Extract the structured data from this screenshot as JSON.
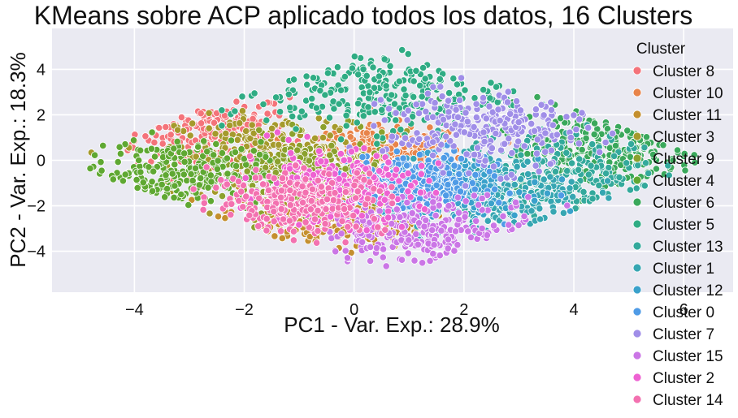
{
  "chart_data": {
    "type": "scatter",
    "title": "KMeans sobre ACP aplicado todos los datos, 16 Clusters",
    "xlabel": "PC1 - Var. Exp.: 28.9%",
    "ylabel": "PC2 - Var. Exp.: 18.3%",
    "xlim": [
      -5.5,
      6.9
    ],
    "ylim": [
      -5.8,
      5.8
    ],
    "xticks": [
      -4,
      -2,
      0,
      2,
      4,
      6
    ],
    "yticks": [
      -4,
      -2,
      0,
      2,
      4
    ],
    "xtick_labels": [
      "−4",
      "−2",
      "0",
      "2",
      "4",
      "6"
    ],
    "ytick_labels": [
      "−4",
      "−2",
      "0",
      "2",
      "4"
    ],
    "grid": true,
    "legend": {
      "title": "Cluster",
      "placement": "right",
      "entries": [
        "Cluster 8",
        "Cluster 10",
        "Cluster 11",
        "Cluster 3",
        "Cluster 9",
        "Cluster 4",
        "Cluster 6",
        "Cluster 5",
        "Cluster 13",
        "Cluster 1",
        "Cluster 12",
        "Cluster 0",
        "Cluster 7",
        "Cluster 15",
        "Cluster 2",
        "Cluster 14"
      ]
    },
    "series": [
      {
        "name": "Cluster 8",
        "color": "#f4737a",
        "center": [
          -2.6,
          1.2
        ],
        "spread": [
          0.7,
          0.9
        ]
      },
      {
        "name": "Cluster 10",
        "color": "#e8844a",
        "center": [
          0.6,
          0.3
        ],
        "spread": [
          0.7,
          0.6
        ]
      },
      {
        "name": "Cluster 11",
        "color": "#c48f2e",
        "center": [
          -0.6,
          -2.5
        ],
        "spread": [
          0.9,
          0.7
        ]
      },
      {
        "name": "Cluster 3",
        "color": "#a59a2c",
        "center": [
          -1.4,
          0.2
        ],
        "spread": [
          0.9,
          0.9
        ]
      },
      {
        "name": "Cluster 9",
        "color": "#8ba12d",
        "center": [
          -0.8,
          -0.6
        ],
        "spread": [
          0.8,
          0.8
        ]
      },
      {
        "name": "Cluster 4",
        "color": "#5fa832",
        "center": [
          -3.3,
          -0.6
        ],
        "spread": [
          0.8,
          0.7
        ]
      },
      {
        "name": "Cluster 6",
        "color": "#3aa85b",
        "center": [
          4.6,
          0.6
        ],
        "spread": [
          0.9,
          1.0
        ]
      },
      {
        "name": "Cluster 5",
        "color": "#2fac84",
        "center": [
          0.2,
          3.0
        ],
        "spread": [
          1.3,
          0.9
        ]
      },
      {
        "name": "Cluster 13",
        "color": "#33a99c",
        "center": [
          3.6,
          -0.6
        ],
        "spread": [
          1.0,
          0.9
        ]
      },
      {
        "name": "Cluster 1",
        "color": "#36a6b2",
        "center": [
          2.4,
          -1.6
        ],
        "spread": [
          0.9,
          0.8
        ]
      },
      {
        "name": "Cluster 12",
        "color": "#3aa1cb",
        "center": [
          1.7,
          -1.2
        ],
        "spread": [
          0.7,
          0.6
        ]
      },
      {
        "name": "Cluster 0",
        "color": "#4f9be6",
        "center": [
          1.2,
          -1.0
        ],
        "spread": [
          0.6,
          0.6
        ]
      },
      {
        "name": "Cluster 7",
        "color": "#a08ee8",
        "center": [
          2.4,
          1.4
        ],
        "spread": [
          0.9,
          0.9
        ]
      },
      {
        "name": "Cluster 15",
        "color": "#cb76e6",
        "center": [
          1.4,
          -3.1
        ],
        "spread": [
          1.0,
          0.8
        ]
      },
      {
        "name": "Cluster 2",
        "color": "#ee62d2",
        "center": [
          -0.4,
          -1.2
        ],
        "spread": [
          0.8,
          0.8
        ]
      },
      {
        "name": "Cluster 14",
        "color": "#f371b0",
        "center": [
          -1.0,
          -1.8
        ],
        "spread": [
          0.8,
          0.7
        ]
      }
    ]
  }
}
